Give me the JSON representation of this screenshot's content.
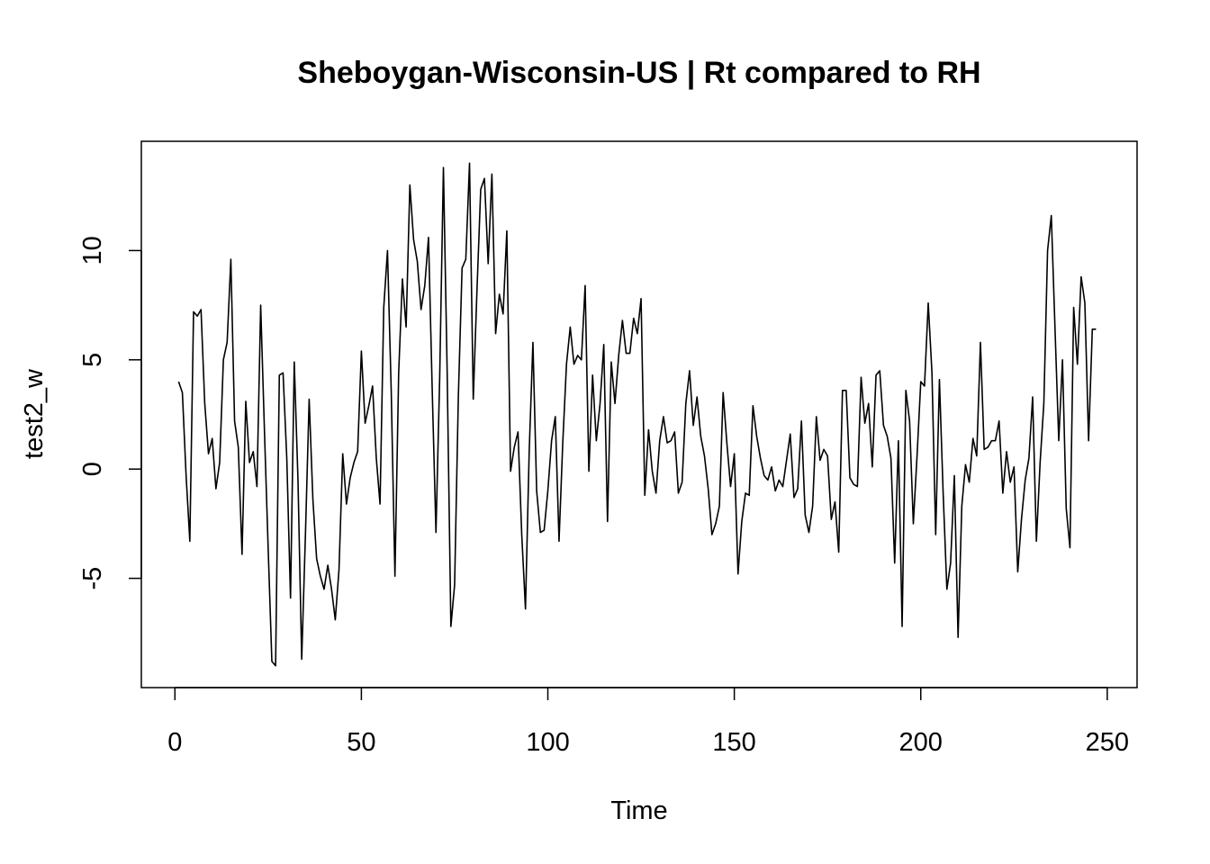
{
  "chart_data": {
    "type": "line",
    "title": "Sheboygan-Wisconsin-US | Rt compared to RH",
    "xlabel": "Time",
    "ylabel": "test2_w",
    "xlim": [
      -9,
      258
    ],
    "ylim": [
      -10,
      15
    ],
    "x_ticks": [
      0,
      50,
      100,
      150,
      200,
      250
    ],
    "y_ticks": [
      -5,
      0,
      5,
      10
    ],
    "grid": false,
    "legend": "none",
    "line_color": "#000000",
    "series": [
      {
        "x_start": 1,
        "values": [
          4.0,
          3.5,
          -0.3,
          -3.3,
          7.2,
          7.0,
          7.3,
          3.0,
          0.7,
          1.4,
          -0.9,
          0.3,
          5.0,
          5.8,
          9.6,
          2.2,
          1.0,
          -3.9,
          3.1,
          0.3,
          0.8,
          -0.8,
          7.5,
          1.8,
          -3.6,
          -8.8,
          -9.0,
          4.3,
          4.4,
          0.5,
          -5.9,
          4.9,
          -0.5,
          -8.7,
          -3.0,
          3.2,
          -1.4,
          -4.1,
          -4.9,
          -5.5,
          -4.4,
          -5.5,
          -6.9,
          -4.6,
          0.7,
          -1.6,
          -0.4,
          0.3,
          0.8,
          5.4,
          2.1,
          2.9,
          3.8,
          0.5,
          -1.6,
          7.4,
          10.0,
          3.6,
          -4.9,
          4.4,
          8.7,
          6.5,
          13.0,
          10.5,
          9.5,
          7.3,
          8.4,
          10.6,
          3.6,
          -2.9,
          4.2,
          13.8,
          4.5,
          -7.2,
          -5.3,
          3.3,
          9.2,
          9.6,
          14.0,
          3.2,
          8.2,
          12.8,
          13.3,
          9.4,
          13.5,
          6.2,
          8.0,
          7.1,
          10.9,
          -0.1,
          1.0,
          1.7,
          -3.0,
          -6.4,
          0.8,
          5.8,
          -1.0,
          -2.9,
          -2.8,
          -1.0,
          1.3,
          2.4,
          -3.3,
          1.2,
          4.8,
          6.5,
          4.8,
          5.2,
          5.0,
          8.4,
          -0.1,
          4.3,
          1.3,
          3.0,
          5.7,
          -2.4,
          4.9,
          3.0,
          5.2,
          6.8,
          5.3,
          5.3,
          6.9,
          6.2,
          7.8,
          -1.2,
          1.8,
          -0.1,
          -1.1,
          1.3,
          2.4,
          1.2,
          1.3,
          1.7,
          -1.1,
          -0.6,
          3.0,
          4.5,
          2.0,
          3.3,
          1.5,
          0.6,
          -0.9,
          -3.0,
          -2.5,
          -1.7,
          3.5,
          1.2,
          -0.8,
          0.7,
          -4.8,
          -2.4,
          -1.1,
          -1.2,
          2.9,
          1.5,
          0.5,
          -0.3,
          -0.5,
          0.1,
          -1.0,
          -0.5,
          -0.8,
          0.4,
          1.6,
          -1.3,
          -0.9,
          2.2,
          -2.1,
          -2.9,
          -1.7,
          2.4,
          0.4,
          0.9,
          0.6,
          -2.3,
          -1.5,
          -3.8,
          3.6,
          3.6,
          -0.4,
          -0.7,
          -0.8,
          4.2,
          2.1,
          3.0,
          0.1,
          4.3,
          4.5,
          2.0,
          1.5,
          0.5,
          -4.3,
          1.3,
          -7.2,
          3.6,
          2.2,
          -2.5,
          0.6,
          4.0,
          3.8,
          7.6,
          4.4,
          -3.0,
          4.1,
          -1.1,
          -5.5,
          -4.3,
          -0.3,
          -7.7,
          -1.7,
          0.2,
          -0.6,
          1.4,
          0.6,
          5.8,
          0.9,
          1.0,
          1.3,
          1.3,
          2.2,
          -1.1,
          0.8,
          -0.6,
          0.1,
          -4.7,
          -2.3,
          -0.5,
          0.5,
          3.3,
          -3.3,
          0.3,
          3.0,
          10.0,
          11.6,
          6.4,
          1.3,
          5.0,
          -1.8,
          -3.6,
          7.4,
          4.8,
          8.8,
          7.6,
          1.3,
          6.4,
          6.4
        ]
      }
    ]
  }
}
